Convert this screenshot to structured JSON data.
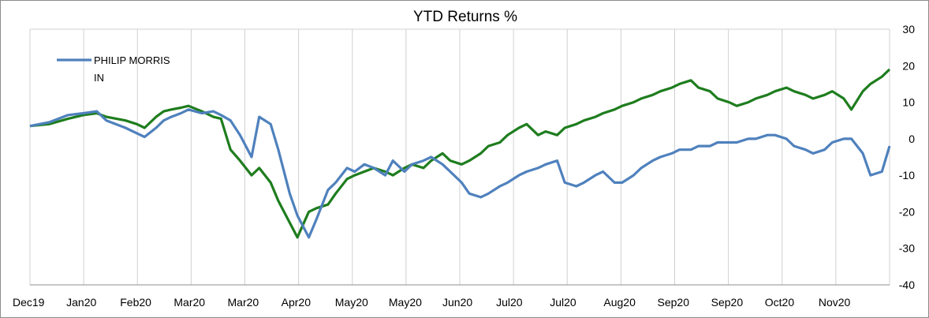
{
  "chart_data": {
    "type": "line",
    "title": "YTD Returns %",
    "xlabel": "",
    "ylabel": "",
    "ylim": [
      -40,
      30
    ],
    "yticks": [
      30,
      20,
      10,
      0,
      -10,
      -20,
      -30,
      -40
    ],
    "y_axis_side": "right",
    "grid": "vertical",
    "legend_placement": "top-left",
    "x_tick_labels": [
      "Dec19",
      "Jan20",
      "Feb20",
      "Mar20",
      "Mar20",
      "Apr20",
      "May20",
      "May20",
      "Jun20",
      "Jul20",
      "Jul20",
      "Aug20",
      "Sep20",
      "Sep20",
      "Oct20",
      "Nov20"
    ],
    "x": [
      0,
      10,
      20,
      28,
      35,
      40,
      50,
      56,
      60,
      66,
      70,
      74,
      79,
      83,
      90,
      96,
      100,
      105,
      110,
      116,
      120,
      126,
      130,
      136,
      140,
      146,
      150,
      156,
      160,
      166,
      170,
      175,
      180,
      186,
      190,
      196,
      200,
      206,
      210,
      216,
      220,
      226,
      230,
      236,
      240,
      246,
      250,
      256,
      260,
      266,
      270,
      276,
      280,
      286,
      290,
      296,
      300,
      306,
      310,
      316,
      320,
      326,
      330,
      336,
      340,
      346,
      350,
      356,
      360,
      366,
      370,
      376,
      380,
      386,
      390,
      396,
      400,
      406,
      410,
      416,
      420,
      426,
      430,
      436,
      440,
      446,
      450
    ],
    "series": [
      {
        "name": "PHILIP MORRIS IN",
        "color": "#4f81bd",
        "values": [
          3.5,
          4.5,
          6.5,
          7,
          7.5,
          5,
          3,
          1.5,
          0.5,
          3,
          5,
          6,
          7,
          8,
          7,
          7.5,
          6.5,
          5,
          1,
          -5,
          6,
          4,
          -3,
          -15,
          -21,
          -27,
          -22,
          -14,
          -12,
          -8,
          -9,
          -7,
          -8,
          -10,
          -6,
          -9,
          -7,
          -6,
          -5,
          -7,
          -9,
          -12,
          -15,
          -16,
          -15,
          -13,
          -12,
          -10,
          -9,
          -8,
          -7,
          -6,
          -12,
          -13,
          -12,
          -10,
          -9,
          -12,
          -12,
          -10,
          -8,
          -6,
          -5,
          -4,
          -3,
          -3,
          -2,
          -2,
          -1,
          -1,
          -1,
          0,
          0,
          1,
          1,
          0,
          -2,
          -3,
          -4,
          -3,
          -1,
          0,
          0,
          -4,
          -10,
          -9,
          -2
        ]
      },
      {
        "name": "",
        "color": "#1e7d1e",
        "values": [
          3.5,
          4,
          5.5,
          6.5,
          7,
          6,
          5,
          4,
          3,
          6,
          7.5,
          8,
          8.5,
          9,
          7.5,
          6,
          5.5,
          -3,
          -6,
          -10,
          -8,
          -12,
          -17,
          -23,
          -27,
          -20,
          -19,
          -18,
          -15,
          -11,
          -10,
          -9,
          -8,
          -9,
          -10,
          -8,
          -7,
          -8,
          -6,
          -4,
          -6,
          -7,
          -6,
          -4,
          -2,
          -1,
          1,
          3,
          4,
          1,
          2,
          1,
          3,
          4,
          5,
          6,
          7,
          8,
          9,
          10,
          11,
          12,
          13,
          14,
          15,
          16,
          14,
          13,
          11,
          10,
          9,
          10,
          11,
          12,
          13,
          14,
          13,
          12,
          11,
          12,
          13,
          11,
          8,
          13,
          15,
          17,
          19
        ]
      }
    ]
  }
}
